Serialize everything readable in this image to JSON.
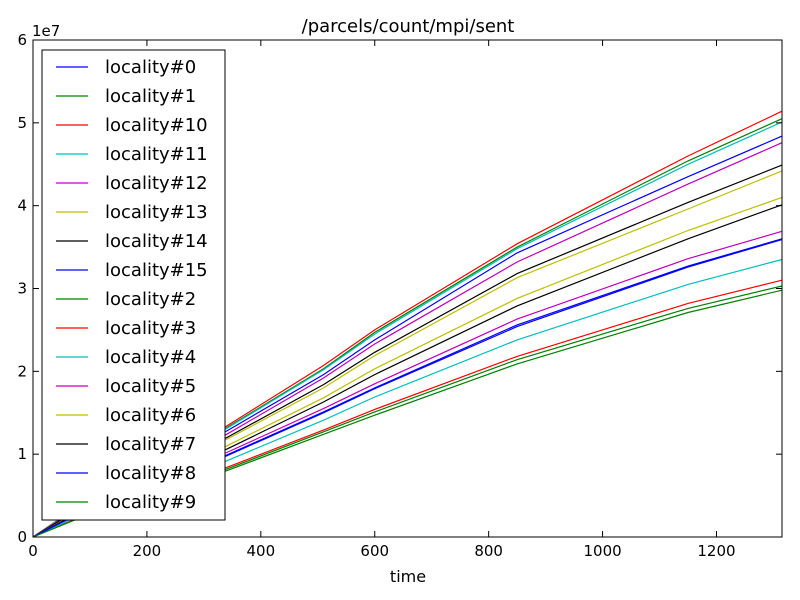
{
  "chart_data": {
    "type": "line",
    "title": "/parcels/count/mpi/sent",
    "xlabel": "time",
    "ylabel": "",
    "y_multiplier_label": "1e7",
    "xlim": [
      0,
      1315
    ],
    "ylim": [
      0,
      60000000
    ],
    "x_ticks": [
      0,
      200,
      400,
      600,
      800,
      1000,
      1200
    ],
    "y_ticks": [
      0,
      10000000,
      20000000,
      30000000,
      40000000,
      50000000,
      60000000
    ],
    "y_tick_labels": [
      "0",
      "1",
      "2",
      "3",
      "4",
      "5",
      "6"
    ],
    "x": [
      0,
      100,
      340,
      510,
      600,
      850,
      1150,
      1315
    ],
    "legend_position": "upper-left",
    "grid": false,
    "series": [
      {
        "name": "locality#0",
        "color": "#0000ff",
        "values": [
          0,
          4500000,
          12800000,
          19600000,
          23800000,
          34300000,
          43500000,
          48400000
        ]
      },
      {
        "name": "locality#1",
        "color": "#008000",
        "values": [
          0,
          4600000,
          13200000,
          20300000,
          24700000,
          35000000,
          45400000,
          50500000
        ]
      },
      {
        "name": "locality#10",
        "color": "#ff0000",
        "values": [
          0,
          4700000,
          13400000,
          20700000,
          25000000,
          35400000,
          46000000,
          51400000
        ]
      },
      {
        "name": "locality#11",
        "color": "#00bfbf",
        "values": [
          0,
          4600000,
          13100000,
          20200000,
          24500000,
          34800000,
          45000000,
          50100000
        ]
      },
      {
        "name": "locality#12",
        "color": "#bf00bf",
        "values": [
          0,
          4400000,
          12400000,
          19200000,
          23300000,
          33200000,
          42600000,
          47600000
        ]
      },
      {
        "name": "locality#13",
        "color": "#bfbf00",
        "values": [
          0,
          4100000,
          11800000,
          18000000,
          21900000,
          31300000,
          39600000,
          44200000
        ]
      },
      {
        "name": "locality#14",
        "color": "#000000",
        "values": [
          0,
          4200000,
          12000000,
          18400000,
          22300000,
          31800000,
          40400000,
          44900000
        ]
      },
      {
        "name": "locality#15",
        "color": "#0000ff",
        "values": [
          0,
          3500000,
          9900000,
          15100000,
          18000000,
          25600000,
          32700000,
          36000000
        ]
      },
      {
        "name": "locality#2",
        "color": "#008000",
        "values": [
          0,
          2900000,
          8200000,
          12700000,
          15100000,
          21400000,
          27600000,
          30300000
        ]
      },
      {
        "name": "locality#3",
        "color": "#ff0000",
        "values": [
          0,
          2900000,
          8400000,
          12900000,
          15400000,
          21800000,
          28200000,
          31000000
        ]
      },
      {
        "name": "locality#4",
        "color": "#00bfbf",
        "values": [
          0,
          3200000,
          9200000,
          14100000,
          16900000,
          23800000,
          30500000,
          33500000
        ]
      },
      {
        "name": "locality#5",
        "color": "#bf00bf",
        "values": [
          0,
          3600000,
          10200000,
          15500000,
          18500000,
          26300000,
          33600000,
          36900000
        ]
      },
      {
        "name": "locality#6",
        "color": "#bfbf00",
        "values": [
          0,
          3800000,
          11000000,
          16800000,
          20300000,
          28800000,
          37000000,
          41000000
        ]
      },
      {
        "name": "locality#7",
        "color": "#000000",
        "values": [
          0,
          3700000,
          10600000,
          16300000,
          19600000,
          27900000,
          36000000,
          40100000
        ]
      },
      {
        "name": "locality#8",
        "color": "#0000ff",
        "values": [
          0,
          3500000,
          9800000,
          15000000,
          17900000,
          25400000,
          32600000,
          35900000
        ]
      },
      {
        "name": "locality#9",
        "color": "#008000",
        "values": [
          0,
          2800000,
          8000000,
          12400000,
          14700000,
          20900000,
          27100000,
          29800000
        ]
      }
    ]
  }
}
